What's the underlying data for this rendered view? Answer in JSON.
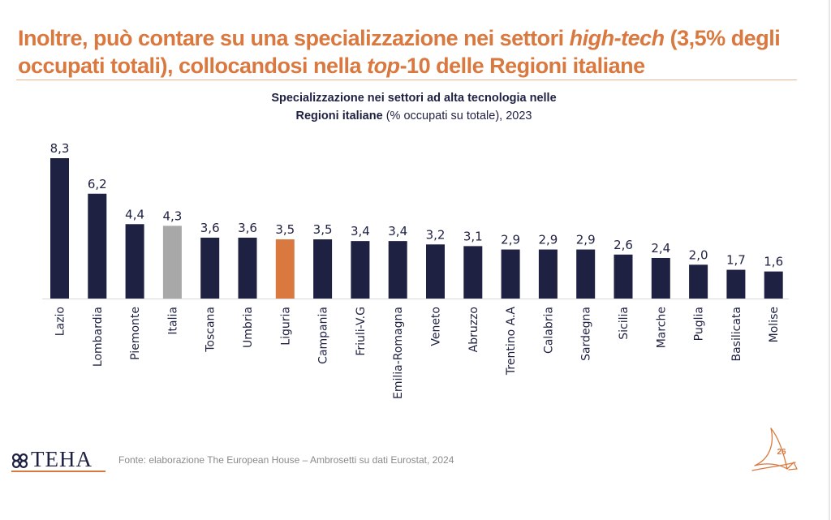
{
  "headline": {
    "part1": "Inoltre, può contare su una specializzazione nei settori ",
    "italic1": "high-tech",
    "part2": " (3,5% degli occupati totali), collocandosi nella ",
    "italic2": "top",
    "part3": "-10 delle Regioni italiane"
  },
  "chart_title": {
    "bold_line1": "Specializzazione nei settori ad alta tecnologia nelle",
    "bold_line2": "Regioni italiane",
    "regular": " (% occupati su totale), 2023"
  },
  "colors": {
    "default_bar": "#1e2142",
    "italia_bar": "#a8a8a8",
    "highlight_bar": "#d9793f",
    "accent": "#d9793f"
  },
  "chart_data": {
    "type": "bar",
    "title": "Specializzazione nei settori ad alta tecnologia nelle Regioni italiane (% occupati su totale), 2023",
    "xlabel": "",
    "ylabel": "% occupati su totale",
    "ylim": [
      0,
      8.3
    ],
    "grid": false,
    "legend": "none",
    "categories": [
      "Lazio",
      "Lombardia",
      "Piemonte",
      "Italia",
      "Toscana",
      "Umbria",
      "Liguria",
      "Campania",
      "Friuli-V.G",
      "Emilia-Romagna",
      "Veneto",
      "Abruzzo",
      "Trentino A.A",
      "Calabria",
      "Sardegna",
      "Sicilia",
      "Marche",
      "Puglia",
      "Basilicata",
      "Molise"
    ],
    "values": [
      8.3,
      6.2,
      4.4,
      4.3,
      3.6,
      3.6,
      3.5,
      3.5,
      3.4,
      3.4,
      3.2,
      3.1,
      2.9,
      2.9,
      2.9,
      2.6,
      2.4,
      2.0,
      1.7,
      1.6
    ],
    "value_labels": [
      "8,3",
      "6,2",
      "4,4",
      "4,3",
      "3,6",
      "3,6",
      "3,5",
      "3,5",
      "3,4",
      "3,4",
      "3,2",
      "3,1",
      "2,9",
      "2,9",
      "2,9",
      "2,6",
      "2,4",
      "2,0",
      "1,7",
      "1,6"
    ],
    "highlight": {
      "Italia": "italia_bar",
      "Liguria": "highlight_bar"
    }
  },
  "footer": {
    "logo_text": "TEHA",
    "source": "Fonte: elaborazione The European House – Ambrosetti su dati Eurostat, 2024",
    "page_number": "26"
  }
}
